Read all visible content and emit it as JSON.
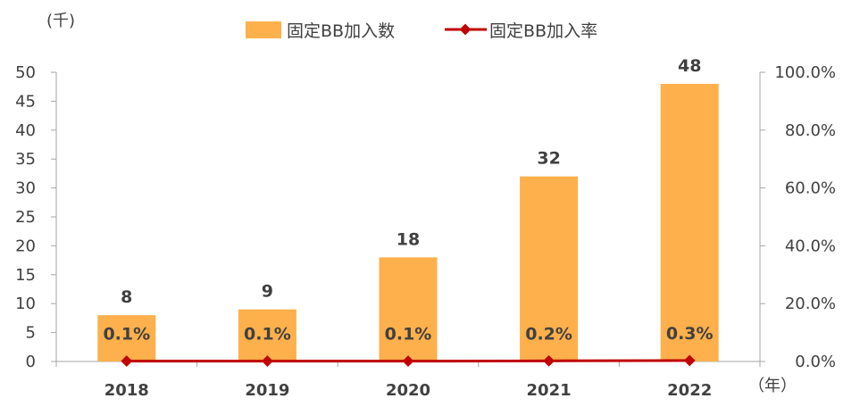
{
  "chart_data": {
    "type": "bar",
    "categories": [
      "2018",
      "2019",
      "2020",
      "2021",
      "2022"
    ],
    "series": [
      {
        "name": "固定BB加入数",
        "type": "bar",
        "axis": "left",
        "values": [
          8,
          9,
          18,
          32,
          48
        ],
        "value_labels": [
          "8",
          "9",
          "18",
          "32",
          "48"
        ],
        "color": "#FDB04B"
      },
      {
        "name": "固定BB加入率",
        "type": "line",
        "axis": "right",
        "values": [
          0.1,
          0.1,
          0.1,
          0.2,
          0.3
        ],
        "value_labels": [
          "0.1%",
          "0.1%",
          "0.1%",
          "0.2%",
          "0.3%"
        ],
        "color": "#C00000"
      }
    ],
    "y_left": {
      "unit_label": "(千)",
      "ylim": [
        0,
        50
      ],
      "ticks": [
        "0",
        "5",
        "10",
        "15",
        "20",
        "25",
        "30",
        "35",
        "40",
        "45",
        "50"
      ]
    },
    "y_right": {
      "ylim": [
        0,
        100
      ],
      "ticks": [
        "0.0%",
        "20.0%",
        "40.0%",
        "60.0%",
        "80.0%",
        "100.0%"
      ]
    },
    "x_axis": {
      "unit_label": "（年）"
    },
    "legend_position": "top",
    "grid": false
  }
}
